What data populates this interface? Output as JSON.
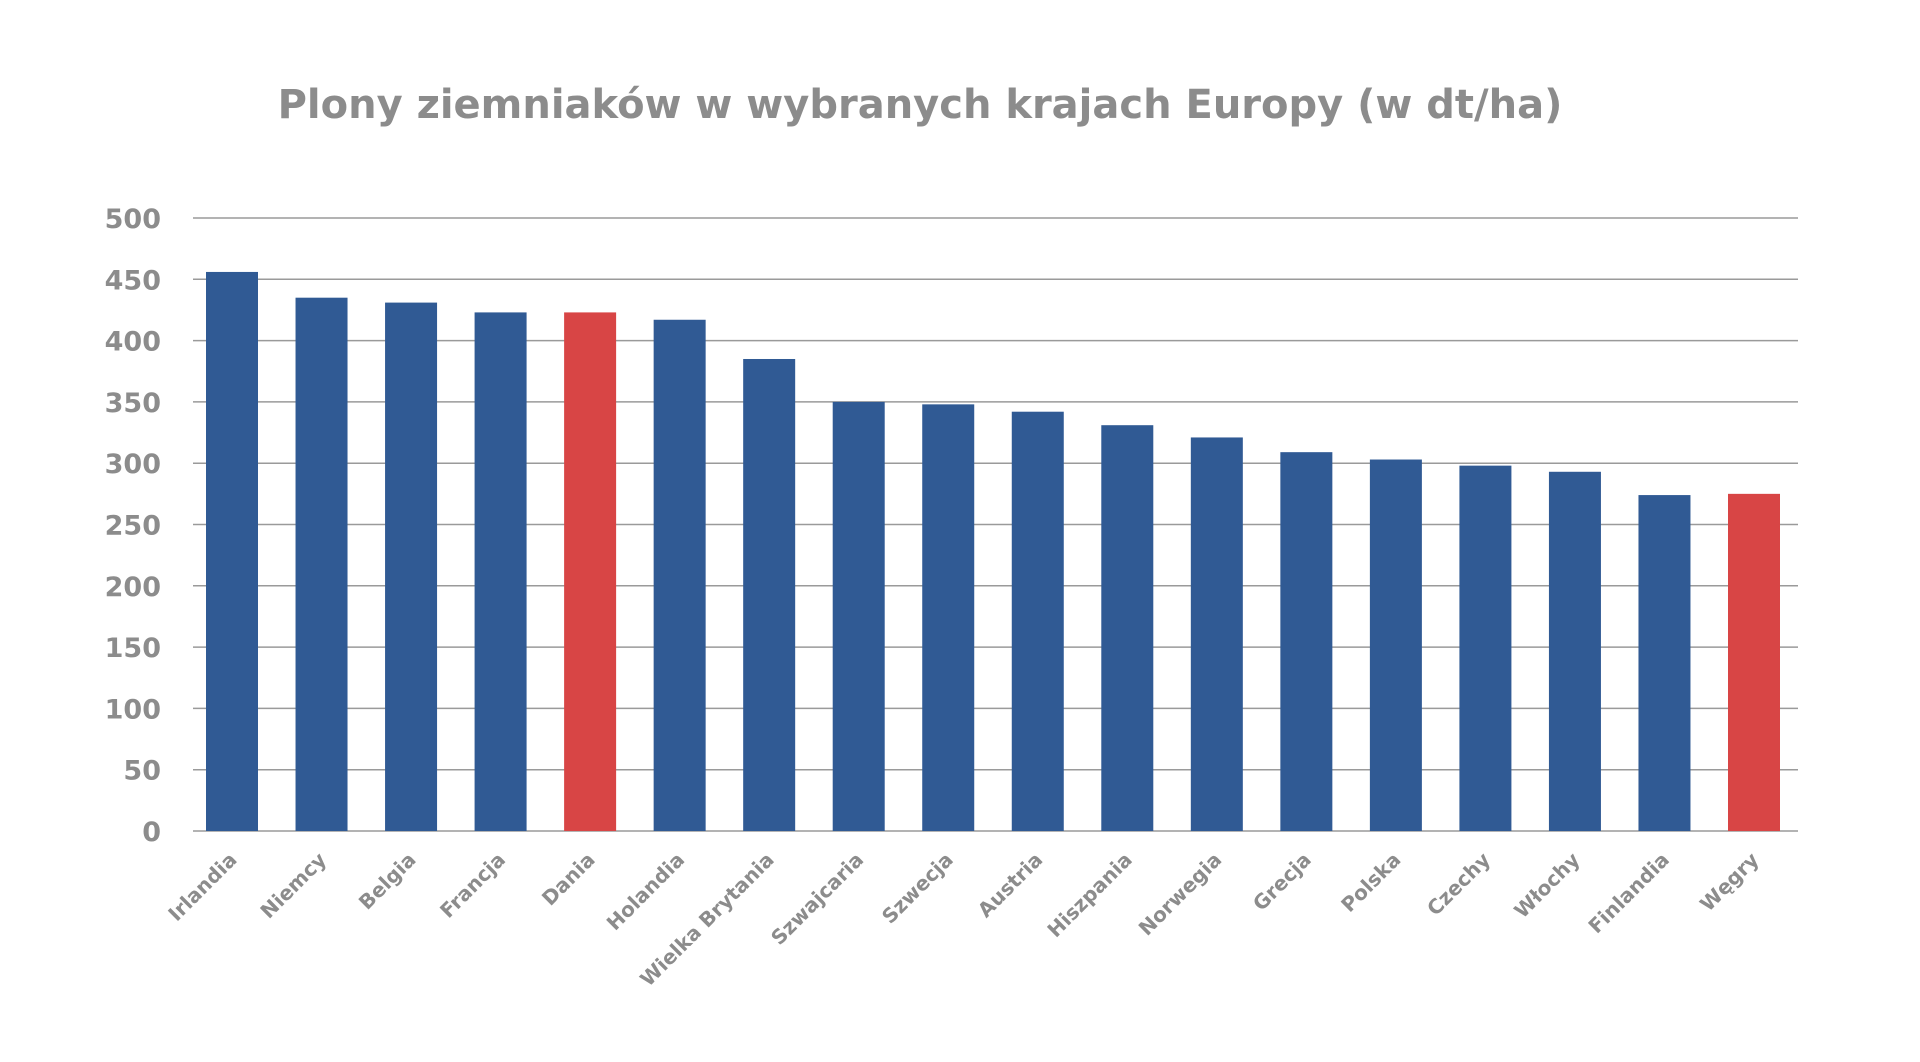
{
  "chart_data": {
    "type": "bar",
    "title": "Plony ziemniaków w wybranych krajach Europy (w dt/ha)",
    "xlabel": "",
    "ylabel": "",
    "ylim": [
      0,
      500
    ],
    "yticks": [
      0,
      50,
      100,
      150,
      200,
      250,
      300,
      350,
      400,
      450,
      500
    ],
    "grid": true,
    "categories": [
      "Irlandia",
      "Niemcy",
      "Belgia",
      "Francja",
      "Dania",
      "Holandia",
      "Wielka Brytania",
      "Szwajcaria",
      "Szwecja",
      "Austria",
      "Hiszpania",
      "Norwegia",
      "Grecja",
      "Polska",
      "Czechy",
      "Włochy",
      "Finlandia",
      "Węgry"
    ],
    "values": [
      456,
      435,
      431,
      423,
      423,
      417,
      385,
      350,
      348,
      342,
      331,
      321,
      309,
      303,
      298,
      293,
      274,
      275
    ],
    "highlighted": [
      "Dania",
      "Węgry"
    ],
    "colors": {
      "default": "#305a94",
      "highlight": "#d84545",
      "grid": "#9a9a9a",
      "text": "#8c8c8c"
    }
  }
}
